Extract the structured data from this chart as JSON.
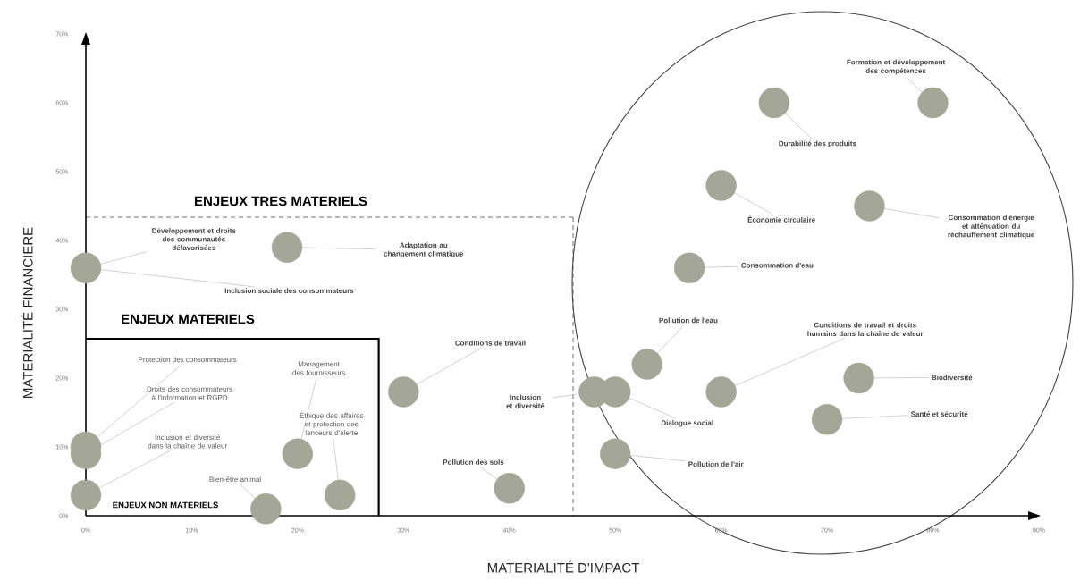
{
  "chart_data": {
    "type": "scatter",
    "xlabel": "MATERIALITÉ D'IMPACT",
    "ylabel": "MATERIALITÉ FINANCIERE",
    "marker": "circle",
    "color": "#a4a797",
    "x": [
      0,
      19,
      0,
      0,
      0,
      17,
      20,
      24,
      30,
      40,
      48,
      50,
      50,
      53,
      60,
      73,
      70,
      65,
      80,
      60,
      74,
      57
    ],
    "values": [
      36,
      39,
      10,
      9,
      3,
      1,
      9,
      3,
      18,
      4,
      18,
      18,
      9,
      22,
      18,
      20,
      14,
      60,
      60,
      48,
      45,
      36
    ],
    "xlim": [
      0,
      90
    ],
    "ylim": [
      0,
      70
    ],
    "xticks": [
      {
        "value": 0,
        "label": "0%"
      },
      {
        "value": 10,
        "label": "10%"
      },
      {
        "value": 20,
        "label": "20%"
      },
      {
        "value": 30,
        "label": "30%"
      },
      {
        "value": 40,
        "label": "40%"
      },
      {
        "value": 50,
        "label": "50%"
      },
      {
        "value": 60,
        "label": "60%"
      },
      {
        "value": 70,
        "label": "70%"
      },
      {
        "value": 80,
        "label": "80%"
      },
      {
        "value": 90,
        "label": "90%"
      }
    ],
    "yticks": [
      {
        "value": 0,
        "label": "0%"
      },
      {
        "value": 10,
        "label": "10%"
      },
      {
        "value": 20,
        "label": "20%"
      },
      {
        "value": 30,
        "label": "30%"
      },
      {
        "value": 40,
        "label": "40%"
      },
      {
        "value": 50,
        "label": "50%"
      },
      {
        "value": 60,
        "label": "60%"
      },
      {
        "value": 70,
        "label": "70%"
      }
    ],
    "annotations": [
      {
        "text": "Développement et droits des communautés défavorisées",
        "x": 0,
        "y": 36
      },
      {
        "text": "Inclusion sociale des consommateurs",
        "x": 0,
        "y": 36
      },
      {
        "text": "Adaptation au changement climatique",
        "x": 19,
        "y": 39
      },
      {
        "text": "Protection des consommateurs",
        "x": 0,
        "y": 10
      },
      {
        "text": "Droits des consommateurs à l'information et RGPD",
        "x": 0,
        "y": 9
      },
      {
        "text": "Inclusion et diversité dans la chaîne de valeur",
        "x": 0,
        "y": 3
      },
      {
        "text": "Bien-être animal",
        "x": 17,
        "y": 1
      },
      {
        "text": "Management des fournisseurs",
        "x": 20,
        "y": 9
      },
      {
        "text": "Éthique des affaires et protection des lanceurs d'alerte",
        "x": 24,
        "y": 3
      },
      {
        "text": "Conditions de travail",
        "x": 30,
        "y": 18
      },
      {
        "text": "Pollution des sols",
        "x": 40,
        "y": 4
      },
      {
        "text": "Inclusion et diversité",
        "x": 48,
        "y": 18
      },
      {
        "text": "Dialogue social",
        "x": 50,
        "y": 18
      },
      {
        "text": "Pollution de l'air",
        "x": 50,
        "y": 9
      },
      {
        "text": "Pollution de l'eau",
        "x": 53,
        "y": 22
      },
      {
        "text": "Conditions de travail et droits humains dans la chaîne de valeur",
        "x": 60,
        "y": 18
      },
      {
        "text": "Biodiversité",
        "x": 73,
        "y": 20
      },
      {
        "text": "Santé et sécurité",
        "x": 70,
        "y": 14
      },
      {
        "text": "Durabilité des produits",
        "x": 65,
        "y": 60
      },
      {
        "text": "Formation et développement des compétences",
        "x": 80,
        "y": 60
      },
      {
        "text": "Économie circulaire",
        "x": 60,
        "y": 48
      },
      {
        "text": "Consommation d'énergie et atténuation du réchauffement climatique",
        "x": 74,
        "y": 45
      },
      {
        "text": "Consommation d'eau",
        "x": 57,
        "y": 36
      },
      "ENJEUX TRES MATERIELS",
      "ENJEUX MATERIELS",
      "ENJEUX NON MATERIELS"
    ]
  }
}
